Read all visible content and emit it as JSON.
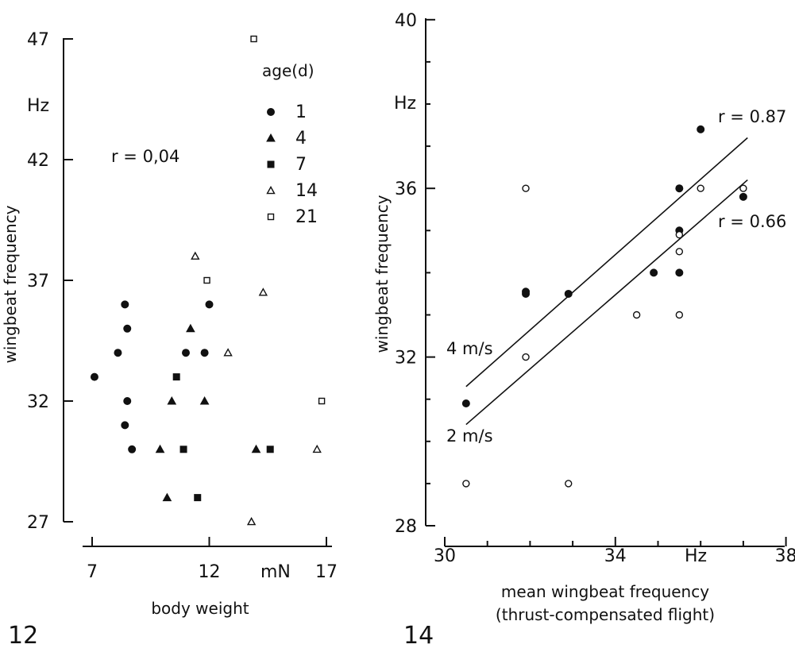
{
  "chart_data": [
    {
      "type": "scatter",
      "panel_number": "12",
      "xlabel": "body weight",
      "x_unit": "mN",
      "ylabel": "wingbeat frequency",
      "y_unit": "Hz",
      "xlim": [
        7,
        17
      ],
      "ylim": [
        27,
        47
      ],
      "x_ticks": [
        7,
        12,
        17
      ],
      "y_ticks": [
        27,
        32,
        37,
        42,
        47
      ],
      "grid": false,
      "annotation": "r = 0,04",
      "legend_title": "age(d)",
      "legend_position": "top-right",
      "series": [
        {
          "name": "1",
          "marker": "filled-circle",
          "points": [
            [
              7.1,
              33
            ],
            [
              8.1,
              34
            ],
            [
              8.4,
              36
            ],
            [
              8.5,
              35
            ],
            [
              8.5,
              32
            ],
            [
              8.4,
              31
            ],
            [
              8.7,
              30
            ],
            [
              11.0,
              34
            ],
            [
              11.8,
              34
            ],
            [
              12.0,
              36
            ]
          ]
        },
        {
          "name": "4",
          "marker": "filled-triangle",
          "points": [
            [
              9.9,
              30
            ],
            [
              10.2,
              28
            ],
            [
              10.4,
              32
            ],
            [
              11.2,
              35
            ],
            [
              11.8,
              32
            ],
            [
              14.0,
              30
            ]
          ]
        },
        {
          "name": "7",
          "marker": "filled-square",
          "points": [
            [
              10.6,
              33
            ],
            [
              10.9,
              30
            ],
            [
              11.5,
              28
            ],
            [
              14.6,
              30
            ]
          ]
        },
        {
          "name": "14",
          "marker": "open-triangle",
          "points": [
            [
              11.4,
              38
            ],
            [
              12.8,
              34
            ],
            [
              14.3,
              36.5
            ],
            [
              13.8,
              27
            ],
            [
              16.6,
              30
            ]
          ]
        },
        {
          "name": "21",
          "marker": "open-square",
          "points": [
            [
              13.9,
              47
            ],
            [
              11.9,
              37
            ],
            [
              16.8,
              32
            ]
          ]
        }
      ]
    },
    {
      "type": "scatter",
      "panel_number": "14",
      "xlabel": "mean wingbeat frequency",
      "xlabel2": "(thrust-compensated flight)",
      "x_unit": "Hz",
      "ylabel": "wingbeat frequency",
      "y_unit": "Hz",
      "xlim": [
        30,
        38
      ],
      "ylim": [
        28,
        40
      ],
      "x_ticks": [
        30,
        34,
        38
      ],
      "y_ticks": [
        28,
        32,
        36,
        40
      ],
      "grid": false,
      "series": [
        {
          "name": "4 m/s",
          "marker": "filled-circle",
          "r_label": "r = 0.87",
          "fit": [
            [
              30.5,
              31.3
            ],
            [
              37.1,
              37.2
            ]
          ],
          "points": [
            [
              30.5,
              30.9
            ],
            [
              31.9,
              33.5
            ],
            [
              31.9,
              33.55
            ],
            [
              32.9,
              33.5
            ],
            [
              34.9,
              34
            ],
            [
              35.5,
              36
            ],
            [
              35.5,
              35
            ],
            [
              35.5,
              34
            ],
            [
              36,
              37.4
            ],
            [
              37,
              35.8
            ]
          ]
        },
        {
          "name": "2 m/s",
          "marker": "open-circle",
          "r_label": "r = 0.66",
          "fit": [
            [
              30.5,
              30.4
            ],
            [
              37.1,
              36.2
            ]
          ],
          "points": [
            [
              30.5,
              29
            ],
            [
              31.9,
              36
            ],
            [
              31.9,
              32
            ],
            [
              32.9,
              29
            ],
            [
              34.5,
              33
            ],
            [
              35.5,
              33
            ],
            [
              35.5,
              34.5
            ],
            [
              35.5,
              34.9
            ],
            [
              36,
              36
            ],
            [
              37,
              36
            ]
          ]
        }
      ]
    }
  ]
}
